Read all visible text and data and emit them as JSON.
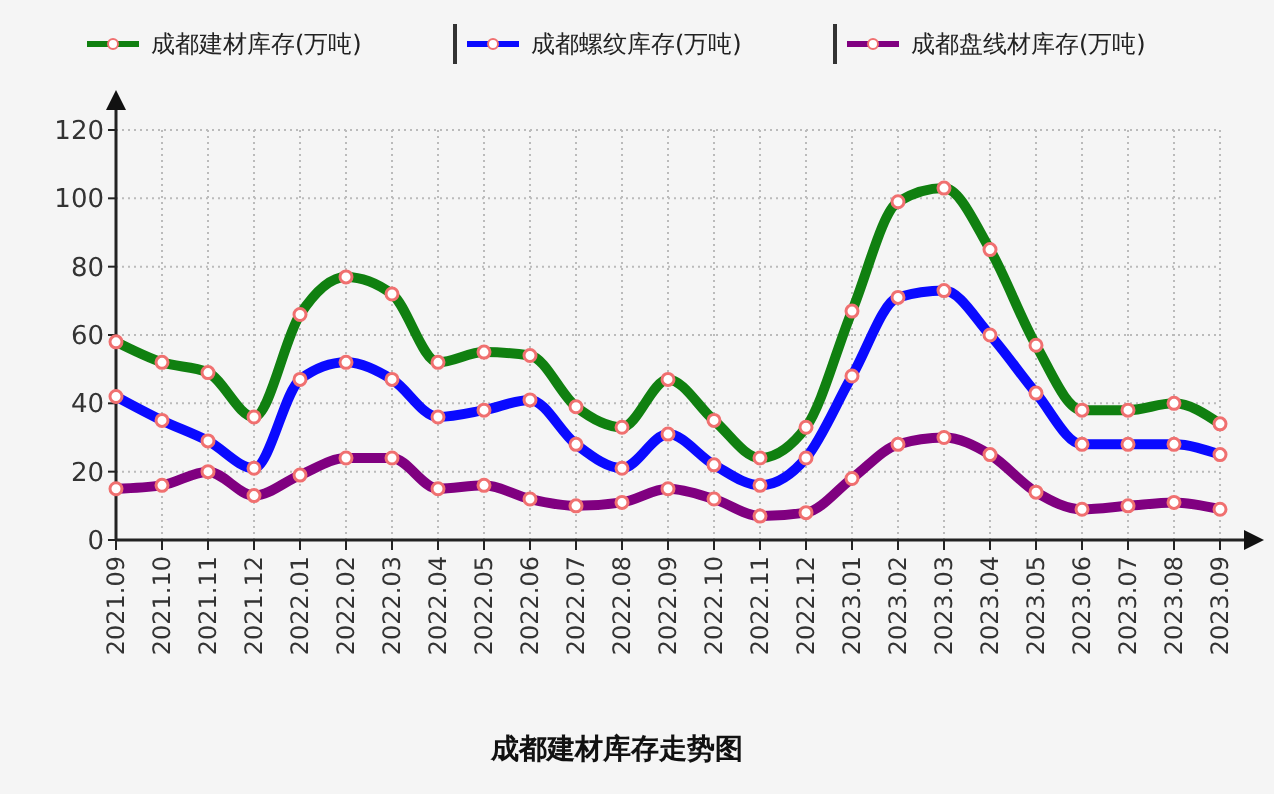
{
  "chart_data": {
    "type": "line",
    "title": "成都建材库存走势图",
    "categories": [
      "2021.09",
      "2021.10",
      "2021.11",
      "2021.12",
      "2022.01",
      "2022.02",
      "2022.03",
      "2022.04",
      "2022.05",
      "2022.06",
      "2022.07",
      "2022.08",
      "2022.09",
      "2022.10",
      "2022.11",
      "2022.12",
      "2023.01",
      "2023.02",
      "2023.03",
      "2023.04",
      "2023.05",
      "2023.06",
      "2023.07",
      "2023.08",
      "2023.09"
    ],
    "series": [
      {
        "name": "成都建材库存(万吨)",
        "color": "#108010",
        "values": [
          58,
          52,
          49,
          36,
          66,
          77,
          72,
          52,
          55,
          54,
          39,
          33,
          47,
          35,
          24,
          33,
          67,
          99,
          103,
          85,
          57,
          38,
          38,
          40,
          34
        ]
      },
      {
        "name": "成都螺纹库存(万吨)",
        "color": "#0a0aff",
        "values": [
          42,
          35,
          29,
          21,
          47,
          52,
          47,
          36,
          38,
          41,
          28,
          21,
          31,
          22,
          16,
          24,
          48,
          71,
          73,
          60,
          43,
          28,
          28,
          28,
          25
        ]
      },
      {
        "name": "成都盘线材库存(万吨)",
        "color": "#800080",
        "values": [
          15,
          16,
          20,
          13,
          19,
          24,
          24,
          15,
          16,
          12,
          10,
          11,
          15,
          12,
          7,
          8,
          18,
          28,
          30,
          25,
          14,
          9,
          10,
          11,
          9
        ]
      }
    ],
    "ylim": [
      0,
      120
    ],
    "yticks": [
      0,
      20,
      40,
      60,
      80,
      100,
      120
    ],
    "grid": true,
    "legend": "top",
    "marker": "circle"
  }
}
